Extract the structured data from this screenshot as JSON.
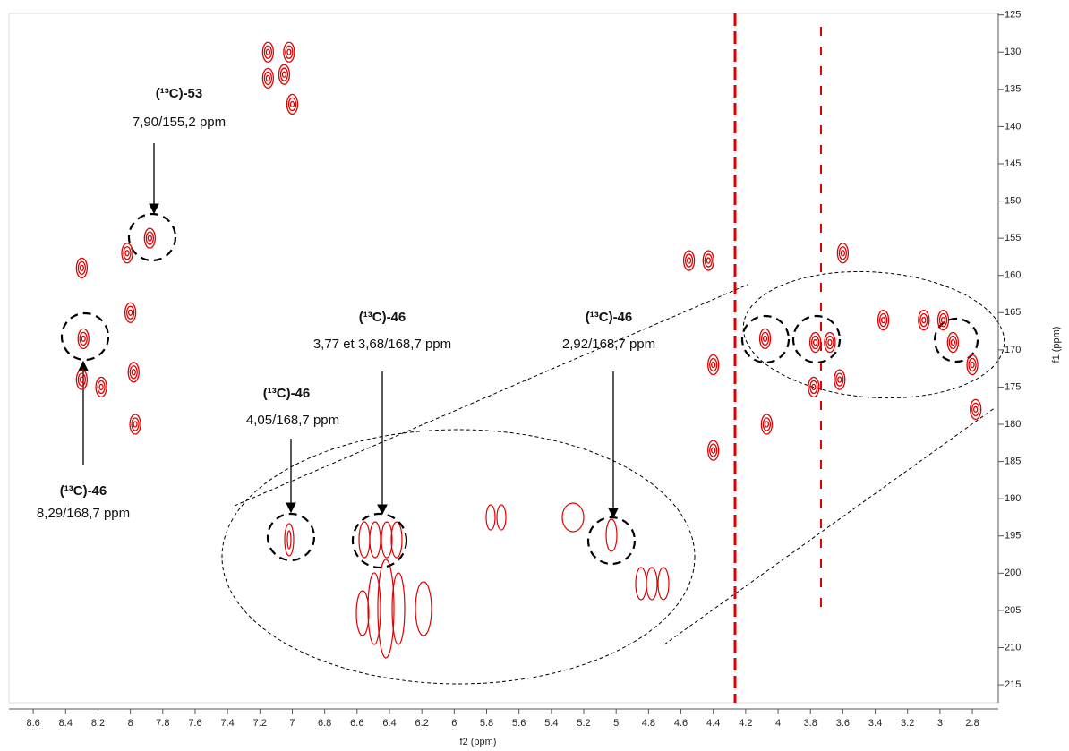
{
  "chart_data": {
    "type": "contour",
    "xlabel": "f2 (ppm)",
    "ylabel": "f1 (ppm)",
    "color": "#e00000",
    "xlim": [
      8.75,
      2.64
    ],
    "ylim": [
      124.8,
      217.4
    ],
    "xticks": [
      8.6,
      8.4,
      8.2,
      8.0,
      7.8,
      7.6,
      7.4,
      7.2,
      7.0,
      6.8,
      6.6,
      6.4,
      6.2,
      6.0,
      5.8,
      5.6,
      5.4,
      5.2,
      5.0,
      4.8,
      4.6,
      4.4,
      4.2,
      4.0,
      3.8,
      3.6,
      3.4,
      3.2,
      3.0,
      2.8
    ],
    "yticks": [
      125,
      130,
      135,
      140,
      145,
      150,
      155,
      160,
      165,
      170,
      175,
      180,
      185,
      190,
      195,
      200,
      205,
      210,
      215
    ],
    "peaks": {
      "x": [
        7.15,
        7.02,
        7.15,
        7.05,
        7.0,
        7.88,
        8.29,
        8.3,
        8.3,
        8.18,
        8.0,
        7.98,
        7.97,
        8.02,
        4.4,
        4.4,
        4.08,
        4.07,
        3.77,
        3.68,
        3.62,
        3.6,
        3.35,
        3.1,
        2.98,
        2.92,
        2.8,
        2.78,
        3.78,
        4.55,
        4.43
      ],
      "y": [
        130,
        130,
        133.5,
        133,
        137,
        155,
        168.5,
        159,
        174,
        175,
        165,
        173,
        180,
        157,
        172,
        183.5,
        168.5,
        180,
        169,
        169,
        174,
        157,
        166,
        166,
        166,
        169,
        172,
        178,
        175,
        158,
        158
      ]
    },
    "annotations": [
      {
        "label": "(¹³C)-53",
        "text": "7,90/155,2 ppm"
      },
      {
        "label": "(¹³C)-46",
        "text": "8,29/168,7 ppm"
      },
      {
        "label": "(¹³C)-46",
        "text": "4,05/168,7 ppm"
      },
      {
        "label": "(¹³C)-46",
        "text": "3,77 et 3,68/168,7 ppm"
      },
      {
        "label": "(¹³C)-46",
        "text": "2,92/168,7 ppm"
      }
    ]
  }
}
